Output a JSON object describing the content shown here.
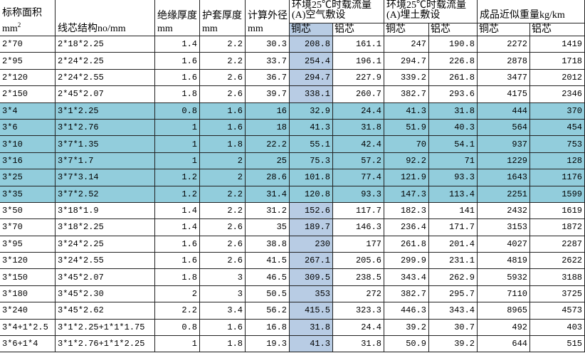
{
  "colors": {
    "row_highlight": "#92CDDC",
    "column_highlight": "#B8CCE4",
    "grid_line": "#222222",
    "text": "#000000",
    "background": "#FFFFFF"
  },
  "header": {
    "nominal_area": {
      "label": "标称面积",
      "unit": "mm",
      "unit_sup": "2"
    },
    "conductor_structure": {
      "label": "线芯结构no/mm"
    },
    "insulation_thickness": {
      "label": "绝缘厚度",
      "unit": "mm"
    },
    "sheath_thickness": {
      "label": "护套厚度",
      "unit": "mm"
    },
    "outer_diameter": {
      "label": "计算外径",
      "unit": "mm"
    },
    "ampacity_air": {
      "line1": "环境25℃时载流量",
      "line2": "(A)空气敷设",
      "copper": "铜芯",
      "aluminum": "铝芯"
    },
    "ampacity_buried": {
      "line1": "环境25℃时载流量",
      "line2": "(A)埋土敷设",
      "copper": "铜芯",
      "aluminum": "铝芯"
    },
    "weight": {
      "label": "成品近似重量kg/km",
      "copper": "铜芯",
      "aluminum": "铝芯"
    }
  },
  "rows": [
    {
      "area": "2*70",
      "structure": "2*18*2.25",
      "insulation": "1.4",
      "sheath": "2.2",
      "diameter": "30.3",
      "air_cu": "208.8",
      "air_al": "161.1",
      "buried_cu": "247",
      "buried_al": "190.8",
      "weight_cu": "2272",
      "weight_al": "1419",
      "highlight": false
    },
    {
      "area": "2*95",
      "structure": "2*24*2.25",
      "insulation": "1.6",
      "sheath": "2.2",
      "diameter": "33.7",
      "air_cu": "254.4",
      "air_al": "196.1",
      "buried_cu": "294.7",
      "buried_al": "226.8",
      "weight_cu": "2878",
      "weight_al": "1718",
      "highlight": false
    },
    {
      "area": "2*120",
      "structure": "2*24*2.55",
      "insulation": "1.6",
      "sheath": "2.6",
      "diameter": "36.7",
      "air_cu": "294.7",
      "air_al": "227.9",
      "buried_cu": "339.2",
      "buried_al": "261.8",
      "weight_cu": "3477",
      "weight_al": "2012",
      "highlight": false
    },
    {
      "area": "2*150",
      "structure": "2*45*2.07",
      "insulation": "1.8",
      "sheath": "2.6",
      "diameter": "39.7",
      "air_cu": "338.1",
      "air_al": "260.7",
      "buried_cu": "382.7",
      "buried_al": "293.6",
      "weight_cu": "4175",
      "weight_al": "2346",
      "highlight": false
    },
    {
      "area": "3*4",
      "structure": "3*1*2.25",
      "insulation": "0.8",
      "sheath": "1.6",
      "diameter": "16",
      "air_cu": "32.9",
      "air_al": "24.4",
      "buried_cu": "41.3",
      "buried_al": "31.8",
      "weight_cu": "444",
      "weight_al": "370",
      "highlight": true
    },
    {
      "area": "3*6",
      "structure": "3*1*2.76",
      "insulation": "1",
      "sheath": "1.6",
      "diameter": "18",
      "air_cu": "41.3",
      "air_al": "31.8",
      "buried_cu": "51.9",
      "buried_al": "40.3",
      "weight_cu": "564",
      "weight_al": "454",
      "highlight": true
    },
    {
      "area": "3*10",
      "structure": "3*7*1.35",
      "insulation": "1",
      "sheath": "1.8",
      "diameter": "22.2",
      "air_cu": "55.1",
      "air_al": "42.4",
      "buried_cu": "70",
      "buried_al": "54.1",
      "weight_cu": "937",
      "weight_al": "753",
      "highlight": true
    },
    {
      "area": "3*16",
      "structure": "3*7*1.7",
      "insulation": "1",
      "sheath": "2",
      "diameter": "25",
      "air_cu": "75.3",
      "air_al": "57.2",
      "buried_cu": "92.2",
      "buried_al": "71",
      "weight_cu": "1229",
      "weight_al": "128",
      "highlight": true
    },
    {
      "area": "3*25",
      "structure": "3*7*3.14",
      "insulation": "1.2",
      "sheath": "2",
      "diameter": "28.6",
      "air_cu": "101.8",
      "air_al": "77.4",
      "buried_cu": "121.9",
      "buried_al": "93.3",
      "weight_cu": "1643",
      "weight_al": "1176",
      "highlight": true
    },
    {
      "area": "3*35",
      "structure": "3*7*2.52",
      "insulation": "1.2",
      "sheath": "2.2",
      "diameter": "31.4",
      "air_cu": "120.8",
      "air_al": "93.3",
      "buried_cu": "147.3",
      "buried_al": "113.4",
      "weight_cu": "2251",
      "weight_al": "1599",
      "highlight": true
    },
    {
      "area": "3*50",
      "structure": "3*18*1.9",
      "insulation": "1.4",
      "sheath": "2.2",
      "diameter": "31.2",
      "air_cu": "152.6",
      "air_al": "117.7",
      "buried_cu": "182.3",
      "buried_al": "141",
      "weight_cu": "2432",
      "weight_al": "1619",
      "highlight": false
    },
    {
      "area": "3*70",
      "structure": "3*18*2.25",
      "insulation": "1.4",
      "sheath": "2.6",
      "diameter": "35",
      "air_cu": "189.7",
      "air_al": "146.3",
      "buried_cu": "236.4",
      "buried_al": "171.7",
      "weight_cu": "3153",
      "weight_al": "1872",
      "highlight": false
    },
    {
      "area": "3*95",
      "structure": "3*24*2.25",
      "insulation": "1.6",
      "sheath": "2.6",
      "diameter": "38.8",
      "air_cu": "230",
      "air_al": "177",
      "buried_cu": "261.8",
      "buried_al": "201.4",
      "weight_cu": "4027",
      "weight_al": "2287",
      "highlight": false
    },
    {
      "area": "3*120",
      "structure": "3*24*2.55",
      "insulation": "1.6",
      "sheath": "2.6",
      "diameter": "41.5",
      "air_cu": "267.1",
      "air_al": "205.6",
      "buried_cu": "299.9",
      "buried_al": "231.1",
      "weight_cu": "4819",
      "weight_al": "2622",
      "highlight": false
    },
    {
      "area": "3*150",
      "structure": "3*45*2.07",
      "insulation": "1.8",
      "sheath": "3",
      "diameter": "46.5",
      "air_cu": "309.5",
      "air_al": "238.5",
      "buried_cu": "343.4",
      "buried_al": "262.9",
      "weight_cu": "5932",
      "weight_al": "3188",
      "highlight": false
    },
    {
      "area": "3*180",
      "structure": "3*45*2.30",
      "insulation": "2",
      "sheath": "3",
      "diameter": "50.5",
      "air_cu": "353",
      "air_al": "272",
      "buried_cu": "382.7",
      "buried_al": "295.7",
      "weight_cu": "7110",
      "weight_al": "3725",
      "highlight": false
    },
    {
      "area": "3*240",
      "structure": "3*45*2.62",
      "insulation": "2.2",
      "sheath": "3.4",
      "diameter": "56.2",
      "air_cu": "415.5",
      "air_al": "323.3",
      "buried_cu": "446.3",
      "buried_al": "343.4",
      "weight_cu": "8965",
      "weight_al": "4573",
      "highlight": false
    },
    {
      "area": "3*4+1*2.5",
      "structure": "3*1*2.25+1*1*1.75",
      "insulation": "0.8",
      "sheath": "1.6",
      "diameter": "16.8",
      "air_cu": "31.8",
      "air_al": "24.4",
      "buried_cu": "39.2",
      "buried_al": "30.7",
      "weight_cu": "492",
      "weight_al": "403",
      "highlight": false
    },
    {
      "area": "3*6+1*4",
      "structure": "3*1*2.76+1*1*2.25",
      "insulation": "1",
      "sheath": "1.8",
      "diameter": "19.3",
      "air_cu": "41.3",
      "air_al": "31.8",
      "buried_cu": "50.9",
      "buried_al": "39.2",
      "weight_cu": "644",
      "weight_al": "515",
      "highlight": false
    }
  ]
}
